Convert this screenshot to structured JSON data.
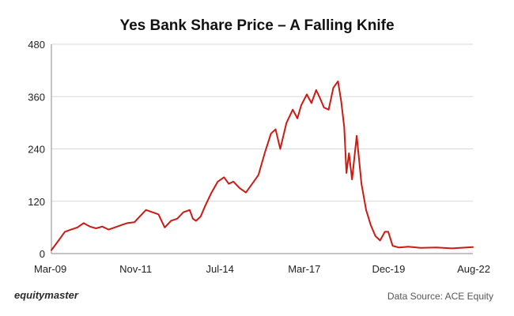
{
  "chart_data": {
    "type": "line",
    "title": "Yes Bank Share Price – A Falling Knife",
    "xlabel": "",
    "ylabel": "",
    "x_tick_labels": [
      "Mar-09",
      "Nov-11",
      "Jul-14",
      "Mar-17",
      "Dec-19",
      "Aug-22"
    ],
    "x_range": [
      2009.17,
      2022.67
    ],
    "ylim": [
      0,
      480
    ],
    "y_ticks": [
      0,
      120,
      240,
      360,
      480
    ],
    "grid": "horizontal",
    "series": [
      {
        "color": "#cc1a14",
        "x": [
          2009.17,
          2009.4,
          2009.6,
          2009.8,
          2010.0,
          2010.2,
          2010.4,
          2010.6,
          2010.8,
          2011.0,
          2011.2,
          2011.4,
          2011.6,
          2011.83,
          2012.0,
          2012.2,
          2012.4,
          2012.6,
          2012.8,
          2013.0,
          2013.2,
          2013.4,
          2013.6,
          2013.7,
          2013.8,
          2013.95,
          2014.1,
          2014.3,
          2014.5,
          2014.7,
          2014.85,
          2015.0,
          2015.2,
          2015.4,
          2015.6,
          2015.8,
          2016.0,
          2016.2,
          2016.35,
          2016.5,
          2016.7,
          2016.9,
          2017.05,
          2017.17,
          2017.35,
          2017.5,
          2017.65,
          2017.75,
          2017.9,
          2018.05,
          2018.2,
          2018.35,
          2018.45,
          2018.55,
          2018.62,
          2018.7,
          2018.8,
          2018.95,
          2019.1,
          2019.25,
          2019.4,
          2019.55,
          2019.7,
          2019.85,
          2019.96,
          2020.1,
          2020.3,
          2020.6,
          2021.0,
          2021.5,
          2022.0,
          2022.67
        ],
        "y": [
          8,
          30,
          50,
          55,
          60,
          70,
          62,
          58,
          62,
          55,
          60,
          65,
          70,
          72,
          85,
          100,
          95,
          90,
          60,
          75,
          80,
          95,
          100,
          80,
          75,
          85,
          110,
          140,
          165,
          175,
          160,
          165,
          150,
          140,
          160,
          180,
          230,
          275,
          285,
          240,
          300,
          330,
          310,
          340,
          365,
          345,
          375,
          360,
          335,
          330,
          380,
          395,
          350,
          290,
          185,
          230,
          170,
          270,
          160,
          100,
          65,
          40,
          30,
          50,
          50,
          18,
          14,
          16,
          13,
          14,
          12,
          15
        ]
      }
    ],
    "line_color": "#cc1a14"
  },
  "branding": "equitymaster",
  "source_note": "Data Source: ACE Equity"
}
